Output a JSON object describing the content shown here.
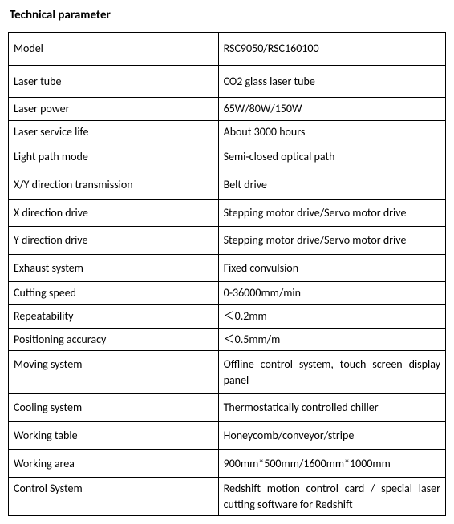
{
  "title": "Technical parameter",
  "table": {
    "columns": [
      "param",
      "value"
    ],
    "col_widths_pct": [
      48,
      52
    ],
    "border_color": "#000000",
    "background_color": "#ffffff",
    "font_family": "Calibri",
    "font_size_pt": 11,
    "rows": [
      {
        "param": "Model",
        "value": "RSC9050/RSC160100",
        "pad": "tall"
      },
      {
        "param": "Laser tube",
        "value": "CO2 glass laser tube",
        "pad": "tall"
      },
      {
        "param": "Laser power",
        "value": "65W/80W/150W",
        "pad": ""
      },
      {
        "param": "Laser service life",
        "value": "About 3000 hours",
        "pad": ""
      },
      {
        "param": "Light path mode",
        "value": "Semi-closed optical path",
        "pad": "med"
      },
      {
        "param": "X/Y direction transmission",
        "value": "Belt drive",
        "pad": "med"
      },
      {
        "param": "X direction drive",
        "value": "Stepping motor drive/Servo motor drive",
        "pad": "med"
      },
      {
        "param": "Y direction drive",
        "value": "Stepping motor drive/Servo motor drive",
        "pad": "med"
      },
      {
        "param": "Exhaust system",
        "value": "Fixed convulsion",
        "pad": "med"
      },
      {
        "param": "Cutting speed",
        "value": "0-36000mm/min",
        "pad": ""
      },
      {
        "param": "Repeatability",
        "value": "＜0.2mm",
        "pad": ""
      },
      {
        "param": "Positioning accuracy",
        "value": "＜0.5mm/m",
        "pad": ""
      },
      {
        "param": "Moving system",
        "value": "Offline control system, touch screen display panel",
        "pad": "med",
        "justify": true
      },
      {
        "param": "Cooling system",
        "value": "Thermostatically controlled chiller",
        "pad": "med"
      },
      {
        "param": "Working table",
        "value": "Honeycomb/conveyor/stripe",
        "pad": "med"
      },
      {
        "param": "Working area",
        "value": "900mm*500mm/1600mm*1000mm",
        "pad": "med"
      },
      {
        "param": "Control System",
        "value": "Redshift motion control card / special laser cutting software for Redshift",
        "pad": "",
        "justify": true
      }
    ]
  }
}
